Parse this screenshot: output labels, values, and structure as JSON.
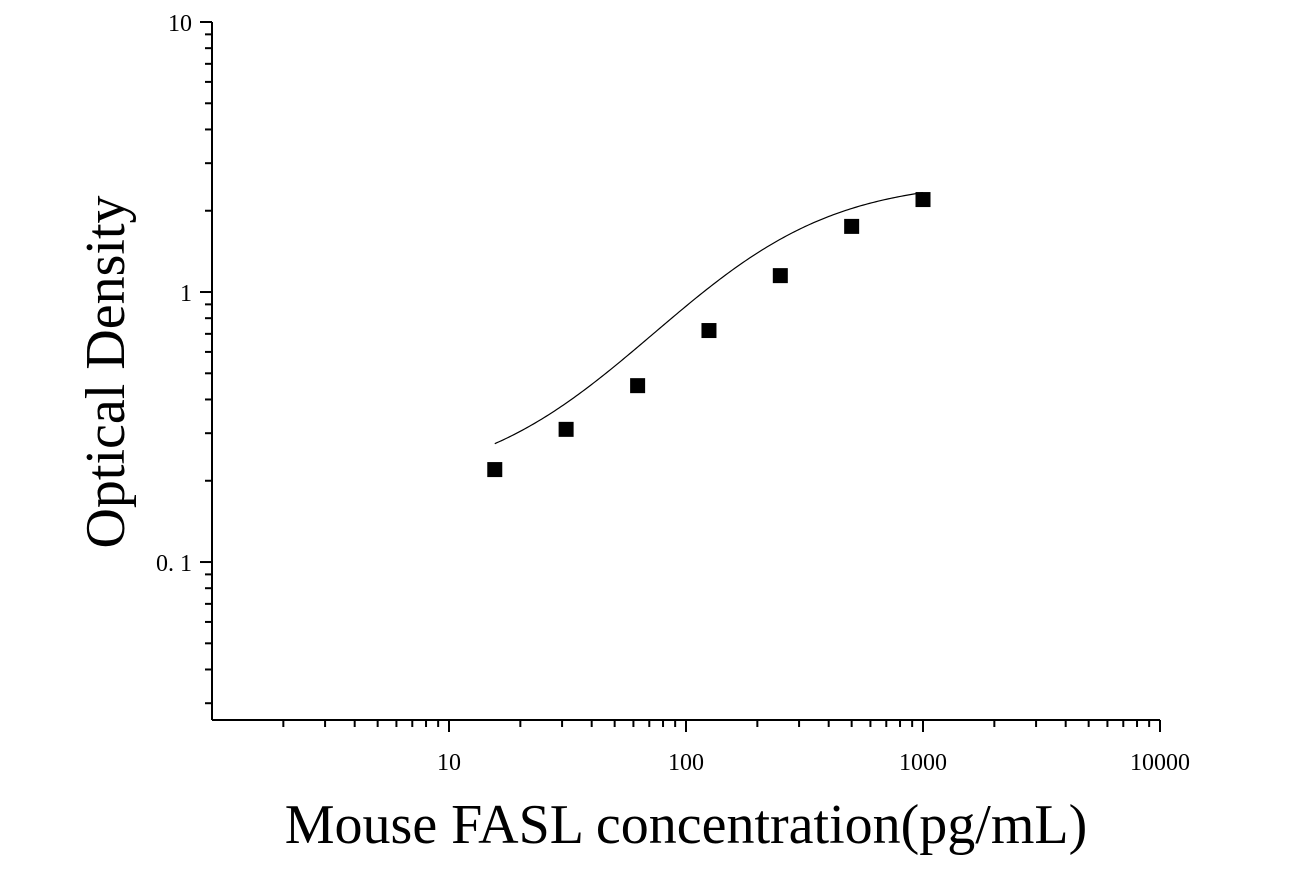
{
  "chart_data": {
    "type": "scatter",
    "title": "",
    "xlabel": "Mouse FASL concentration(pg/mL)",
    "ylabel": "Optical Density",
    "xscale": "log",
    "yscale": "log",
    "xlim": [
      1,
      10000
    ],
    "ylim": [
      0.026,
      10
    ],
    "grid": false,
    "legend": "none",
    "x_ticks": [
      {
        "value": 10,
        "label": "10"
      },
      {
        "value": 100,
        "label": "100"
      },
      {
        "value": 1000,
        "label": "1000"
      },
      {
        "value": 10000,
        "label": "10000"
      }
    ],
    "y_ticks": [
      {
        "value": 0.1,
        "label": "0. 1"
      },
      {
        "value": 1,
        "label": "1"
      },
      {
        "value": 10,
        "label": "10"
      }
    ],
    "series": [
      {
        "marker": "square",
        "color": "#000000",
        "points": [
          {
            "x": 15.6,
            "y": 0.22
          },
          {
            "x": 31.2,
            "y": 0.31
          },
          {
            "x": 62.5,
            "y": 0.45
          },
          {
            "x": 125,
            "y": 0.72
          },
          {
            "x": 250,
            "y": 1.15
          },
          {
            "x": 500,
            "y": 1.75
          },
          {
            "x": 1000,
            "y": 2.2
          }
        ]
      }
    ],
    "fit_curve": {
      "type": "4PL",
      "A": 0.19,
      "B": 1.3,
      "C": 200,
      "D": 2.6,
      "x_range": [
        15.6,
        1000
      ],
      "color": "#000000"
    }
  }
}
